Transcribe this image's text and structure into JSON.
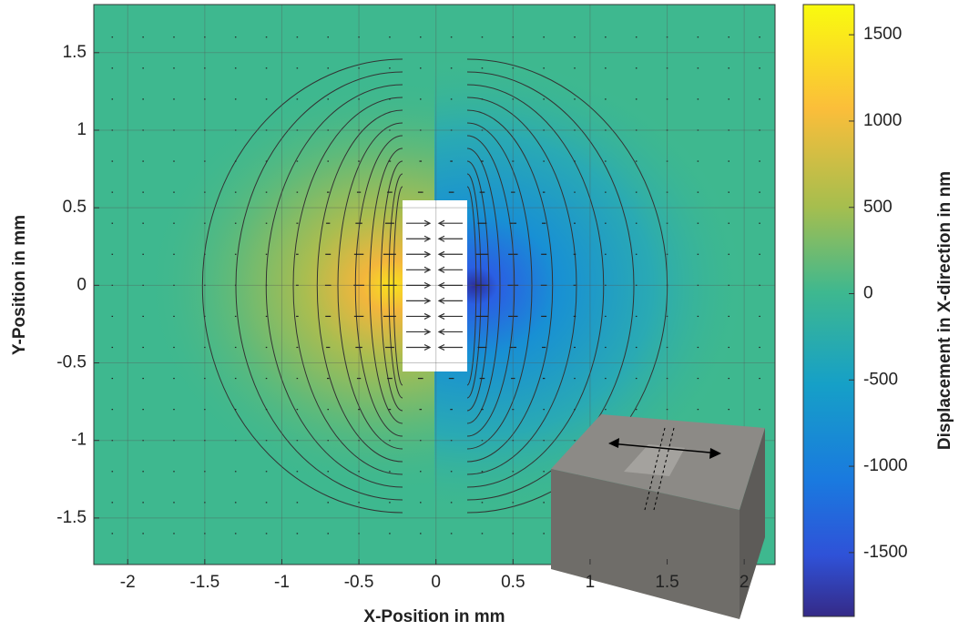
{
  "chart_data": {
    "type": "contour",
    "x_label": "X-Position in mm",
    "y_label": "Y-Position in mm",
    "colorbar_label": "Displacement in X-direction in nm",
    "xlim": [
      -2.22,
      2.2
    ],
    "ylim": [
      -1.8,
      1.81
    ],
    "xticks": [
      -2,
      -1.5,
      -1,
      -0.5,
      0,
      0.5,
      1,
      1.5,
      2
    ],
    "yticks": [
      -1.5,
      -1,
      -0.5,
      0,
      0.5,
      1,
      1.5
    ],
    "clim": [
      -1870,
      1675
    ],
    "cticks": [
      -1500,
      -1000,
      -500,
      0,
      500,
      1000,
      1500
    ],
    "grid": true
  }
}
